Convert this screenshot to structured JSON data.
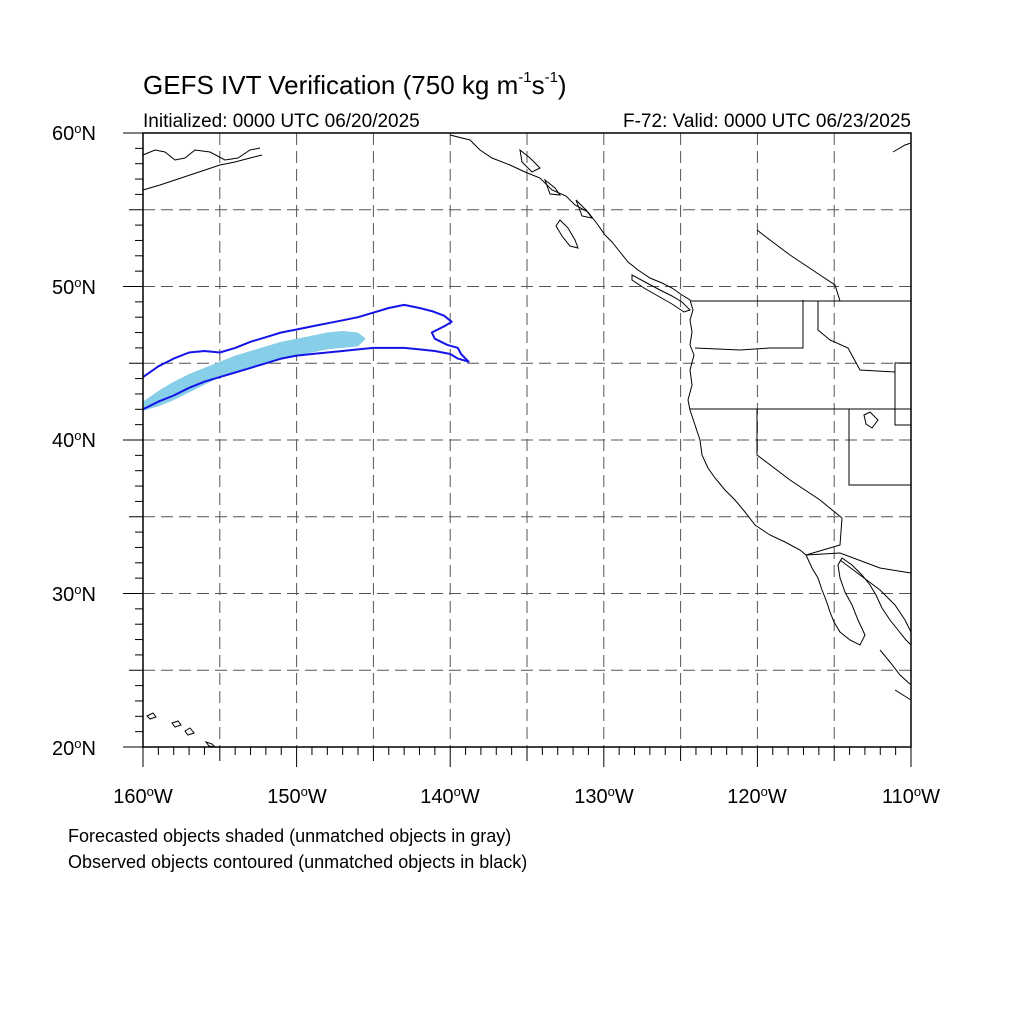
{
  "title": {
    "prefix": "GEFS IVT Verification (750 kg m",
    "sup1": "-1",
    "mid": "s",
    "sup2": "-1",
    "suffix": ")"
  },
  "initialized": "Initialized: 0000 UTC 06/20/2025",
  "valid": "F-72: Valid: 0000 UTC 06/23/2025",
  "axes": {
    "lat_labels": [
      {
        "value": 60,
        "text": "60",
        "hem": "N"
      },
      {
        "value": 50,
        "text": "50",
        "hem": "N"
      },
      {
        "value": 40,
        "text": "40",
        "hem": "N"
      },
      {
        "value": 30,
        "text": "30",
        "hem": "N"
      },
      {
        "value": 20,
        "text": "20",
        "hem": "N"
      }
    ],
    "lon_labels": [
      {
        "value": -160,
        "text": "160",
        "hem": "W"
      },
      {
        "value": -150,
        "text": "150",
        "hem": "W"
      },
      {
        "value": -140,
        "text": "140",
        "hem": "W"
      },
      {
        "value": -130,
        "text": "130",
        "hem": "W"
      },
      {
        "value": -120,
        "text": "120",
        "hem": "W"
      },
      {
        "value": -110,
        "text": "110",
        "hem": "W"
      }
    ],
    "lat_range": [
      20,
      60
    ],
    "lon_range": [
      -160,
      -110
    ],
    "gridline_spacing_deg": 5,
    "grid": "dashed"
  },
  "colors": {
    "forecast_fill": "#87CEE8",
    "observed_contour": "#1414E6",
    "coastline": "#000000",
    "grid": "#555555"
  },
  "objects": {
    "forecast_shaded": [
      {
        "lonlat": [
          [
            -160,
            42.5
          ],
          [
            -159,
            43.2
          ],
          [
            -158,
            43.8
          ],
          [
            -157,
            44.3
          ],
          [
            -156,
            44.7
          ],
          [
            -155,
            45.1
          ],
          [
            -154,
            45.5
          ],
          [
            -153,
            45.8
          ],
          [
            -152,
            46.1
          ],
          [
            -151,
            46.4
          ],
          [
            -150,
            46.6
          ],
          [
            -149,
            46.8
          ],
          [
            -148,
            47.0
          ],
          [
            -147,
            47.1
          ],
          [
            -146,
            47.0
          ],
          [
            -145.5,
            46.6
          ],
          [
            -146,
            46.1
          ],
          [
            -147,
            46.0
          ],
          [
            -148,
            45.9
          ],
          [
            -149,
            45.7
          ],
          [
            -150,
            45.5
          ],
          [
            -151,
            45.3
          ],
          [
            -152,
            45.0
          ],
          [
            -153,
            44.7
          ],
          [
            -154,
            44.4
          ],
          [
            -155,
            44.1
          ],
          [
            -156,
            43.6
          ],
          [
            -157,
            43.1
          ],
          [
            -158,
            42.6
          ],
          [
            -159,
            42.2
          ],
          [
            -160,
            41.9
          ]
        ]
      }
    ],
    "observed_contour": [
      {
        "lonlat": [
          [
            -160,
            42.0
          ],
          [
            -159,
            42.5
          ],
          [
            -158,
            42.9
          ],
          [
            -157,
            43.4
          ],
          [
            -156,
            43.8
          ],
          [
            -155,
            44.1
          ],
          [
            -154,
            44.4
          ],
          [
            -153,
            44.7
          ],
          [
            -152,
            45.0
          ],
          [
            -151,
            45.3
          ],
          [
            -150,
            45.5
          ],
          [
            -149,
            45.6
          ],
          [
            -148,
            45.7
          ],
          [
            -147,
            45.8
          ],
          [
            -146,
            45.9
          ],
          [
            -145,
            46.0
          ],
          [
            -144,
            46.0
          ],
          [
            -143,
            46.0
          ],
          [
            -142,
            45.9
          ],
          [
            -141,
            45.8
          ],
          [
            -140,
            45.6
          ],
          [
            -139.5,
            45.3
          ],
          [
            -138.8,
            45.1
          ],
          [
            -139.3,
            45.6
          ],
          [
            -139.5,
            46.0
          ],
          [
            -140.2,
            46.2
          ],
          [
            -141,
            46.6
          ],
          [
            -141.2,
            47.0
          ],
          [
            -140.4,
            47.4
          ],
          [
            -139.9,
            47.7
          ],
          [
            -140.4,
            48.1
          ],
          [
            -141.2,
            48.4
          ],
          [
            -142.0,
            48.6
          ],
          [
            -143.0,
            48.8
          ],
          [
            -144.0,
            48.6
          ],
          [
            -145.0,
            48.3
          ],
          [
            -146.0,
            48.0
          ],
          [
            -147.0,
            47.8
          ],
          [
            -148.0,
            47.6
          ],
          [
            -149.0,
            47.4
          ],
          [
            -150.0,
            47.2
          ],
          [
            -151.0,
            47.0
          ],
          [
            -152.0,
            46.7
          ],
          [
            -153.0,
            46.4
          ],
          [
            -154.0,
            46.0
          ],
          [
            -155.0,
            45.7
          ],
          [
            -156.0,
            45.8
          ],
          [
            -157.0,
            45.7
          ],
          [
            -158.0,
            45.3
          ],
          [
            -159.0,
            44.8
          ],
          [
            -160.0,
            44.1
          ]
        ]
      }
    ]
  },
  "notes": [
    "Forecasted objects shaded (unmatched objects in gray)",
    "Observed objects contoured (unmatched objects in black)"
  ]
}
